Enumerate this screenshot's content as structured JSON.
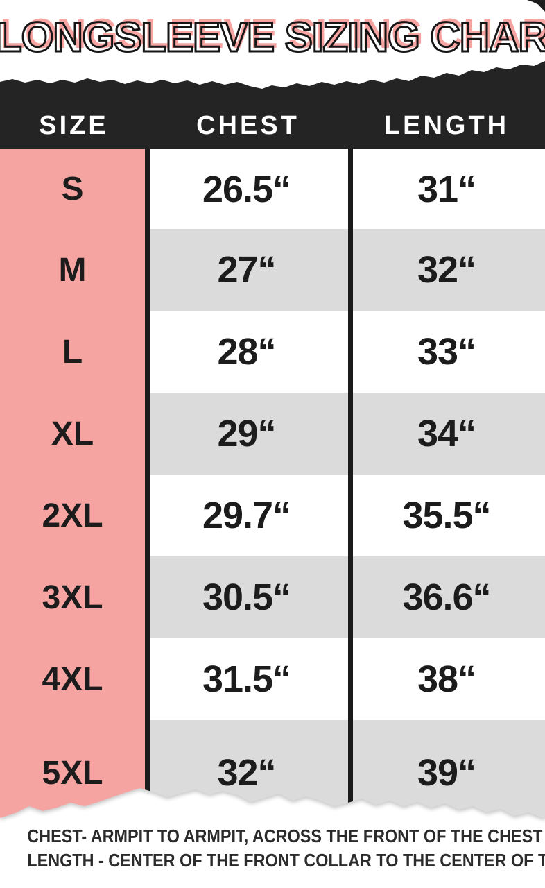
{
  "chart_data": {
    "type": "table",
    "title": "LONGSLEEVE SIZING CHART",
    "columns": [
      "SIZE",
      "CHEST",
      "LENGTH"
    ],
    "rows": [
      [
        "S",
        "26.5“",
        "31“"
      ],
      [
        "M",
        "27“",
        "32“"
      ],
      [
        "L",
        "28“",
        "33“"
      ],
      [
        "XL",
        "29“",
        "34“"
      ],
      [
        "2XL",
        "29.7“",
        "35.5“"
      ],
      [
        "3XL",
        "30.5“",
        "36.6“"
      ],
      [
        "4XL",
        "31.5“",
        "38“"
      ],
      [
        "5XL",
        "32“",
        "39“"
      ]
    ]
  },
  "notes": {
    "chest": "CHEST- ARMPIT TO ARMPIT, ACROSS THE FRONT OF THE CHEST",
    "length": "LENGTH - CENTER OF THE FRONT COLLAR TO THE CENTER OF THE TAIL"
  },
  "colors": {
    "accent_pink": "#F6A4A1",
    "header_black": "#242424",
    "row_gray": "#DBDBDB",
    "ink": "#1c1c1c"
  }
}
